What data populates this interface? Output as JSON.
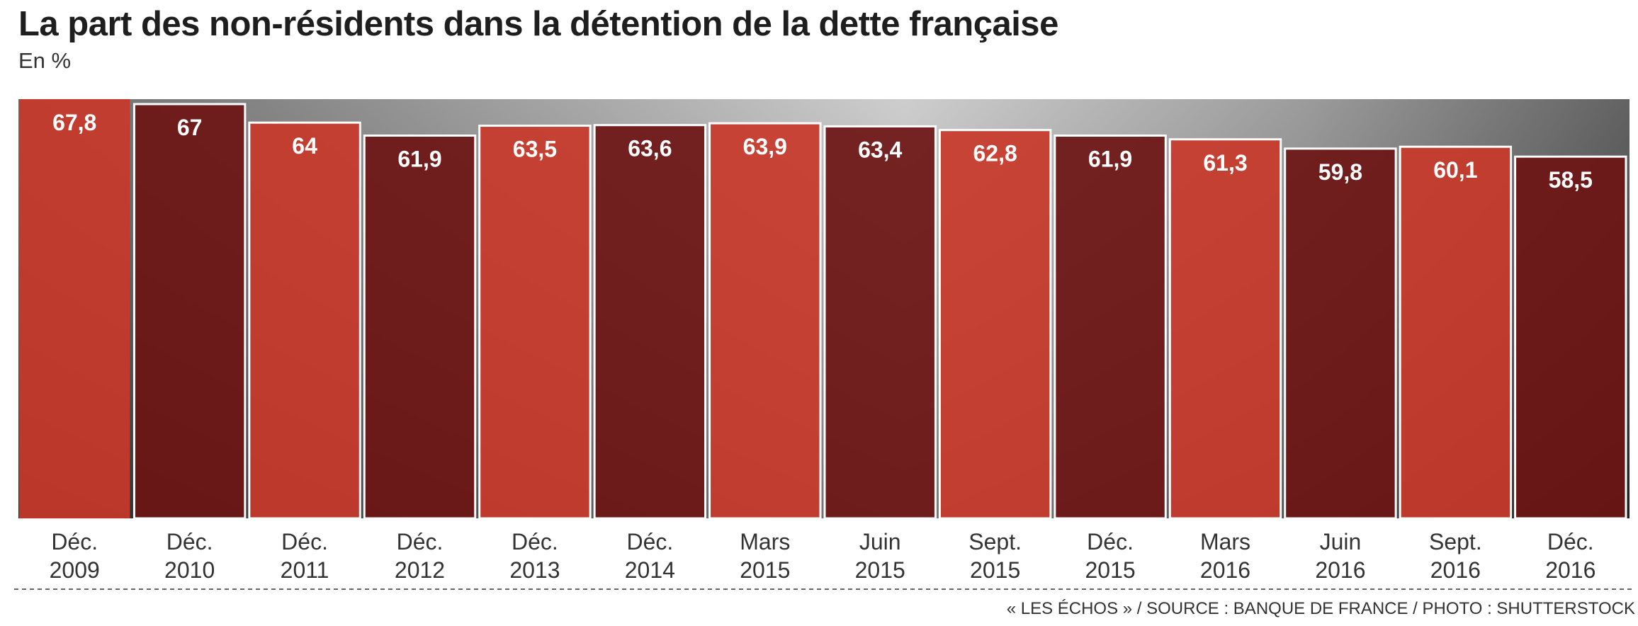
{
  "chart_data": {
    "type": "bar",
    "title": "La part des non-résidents dans la détention de la dette française",
    "subtitle": "En %",
    "categories": [
      [
        "Déc.",
        "2009"
      ],
      [
        "Déc.",
        "2010"
      ],
      [
        "Déc.",
        "2011"
      ],
      [
        "Déc.",
        "2012"
      ],
      [
        "Déc.",
        "2013"
      ],
      [
        "Déc.",
        "2014"
      ],
      [
        "Mars",
        "2015"
      ],
      [
        "Juin",
        "2015"
      ],
      [
        "Sept.",
        "2015"
      ],
      [
        "Déc.",
        "2015"
      ],
      [
        "Mars",
        "2016"
      ],
      [
        "Juin",
        "2016"
      ],
      [
        "Sept.",
        "2016"
      ],
      [
        "Déc.",
        "2016"
      ]
    ],
    "values": [
      67.8,
      67,
      64,
      61.9,
      63.5,
      63.6,
      63.9,
      63.4,
      62.8,
      61.9,
      61.3,
      59.8,
      60.1,
      58.5
    ],
    "value_labels": [
      "67,8",
      "67",
      "64",
      "61,9",
      "63,5",
      "63,6",
      "63,9",
      "63,4",
      "62,8",
      "61,9",
      "61,3",
      "59,8",
      "60,1",
      "58,5"
    ],
    "ylim": [
      0,
      67.8
    ],
    "grid": false,
    "colors": {
      "bar_even": "#c8382a",
      "bar_odd": "#6e1414",
      "bar_outline": "#ffffff",
      "background_photo": "#4a4a4a"
    }
  },
  "footer": {
    "credit": "« LES ÉCHOS » / SOURCE : BANQUE DE FRANCE / PHOTO : SHUTTERSTOCK"
  }
}
